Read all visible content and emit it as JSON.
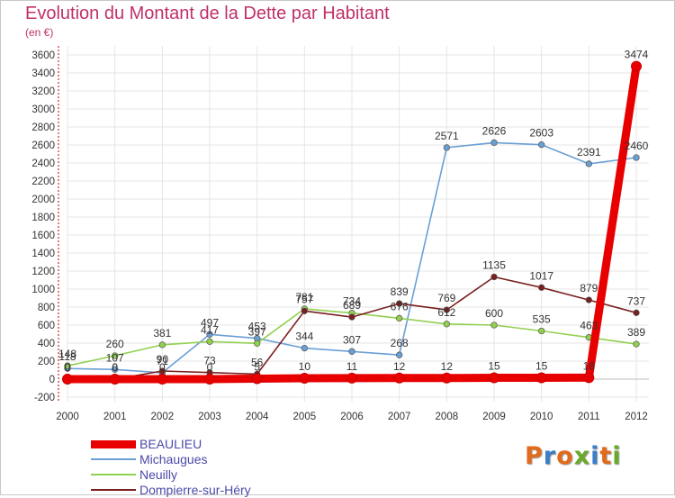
{
  "title": "Evolution du Montant de la Dette par Habitant",
  "subtitle": "(en €)",
  "logo": "Proxiti",
  "colors": {
    "title": "#c0306a",
    "axis_text": "#333333",
    "legend_text": "#4a4aa8",
    "grid": "#e6e6e6",
    "logo_letters": [
      "#e26a1c",
      "#3a7ec8",
      "#e26a1c",
      "#6aaa2a",
      "#3a7ec8",
      "#e26a1c",
      "#6aaa2a"
    ]
  },
  "chart_data": {
    "type": "line",
    "title": "Evolution du Montant de la Dette par Habitant",
    "subtitle": "(en €)",
    "xlabel": "",
    "ylabel": "",
    "x": [
      "2000",
      "2001",
      "2002",
      "2003",
      "2004",
      "2005",
      "2006",
      "2007",
      "2008",
      "2009",
      "2010",
      "2011",
      "2012"
    ],
    "ylim": [
      -200,
      3600
    ],
    "yticks": [
      -200,
      0,
      200,
      400,
      600,
      800,
      1000,
      1200,
      1400,
      1600,
      1800,
      2000,
      2200,
      2400,
      2600,
      2800,
      3000,
      3200,
      3400,
      3600
    ],
    "grid": true,
    "legend_position": "bottom-left",
    "series": [
      {
        "name": "BEAULIEU",
        "color": "#e80000",
        "emphasis": true,
        "values": [
          0,
          0,
          0,
          0,
          5,
          10,
          11,
          12,
          12,
          15,
          15,
          16,
          3474
        ],
        "labels": [
          "0",
          "0",
          "0",
          "0",
          "5",
          "10",
          "11",
          "12",
          "12",
          "15",
          "15",
          "16",
          "3474"
        ]
      },
      {
        "name": "Michaugues",
        "color": "#6a9fd4",
        "emphasis": false,
        "values": [
          118,
          107,
          71,
          497,
          453,
          344,
          307,
          268,
          2571,
          2626,
          2603,
          2391,
          2460
        ],
        "labels": [
          "118",
          "107",
          "71",
          "497",
          "453",
          "344",
          "307",
          "268",
          "2571",
          "2626",
          "2603",
          "2391",
          "2460"
        ]
      },
      {
        "name": "Neuilly",
        "color": "#92d050",
        "emphasis": false,
        "values": [
          148,
          260,
          381,
          417,
          397,
          781,
          734,
          676,
          612,
          600,
          535,
          463,
          389
        ],
        "labels": [
          "148",
          "260",
          "381",
          "417",
          "397",
          "781",
          "734",
          "676",
          "612",
          "600",
          "535",
          "463",
          "389"
        ]
      },
      {
        "name": "Dompierre-sur-Héry",
        "color": "#7a1f1f",
        "emphasis": false,
        "values": [
          0,
          0,
          90,
          73,
          56,
          757,
          689,
          839,
          769,
          1135,
          1017,
          879,
          737
        ],
        "labels": [
          "0",
          "0",
          "90",
          "73",
          "56",
          "757",
          "689",
          "839",
          "769",
          "1135",
          "1017",
          "879",
          "737"
        ]
      }
    ]
  }
}
